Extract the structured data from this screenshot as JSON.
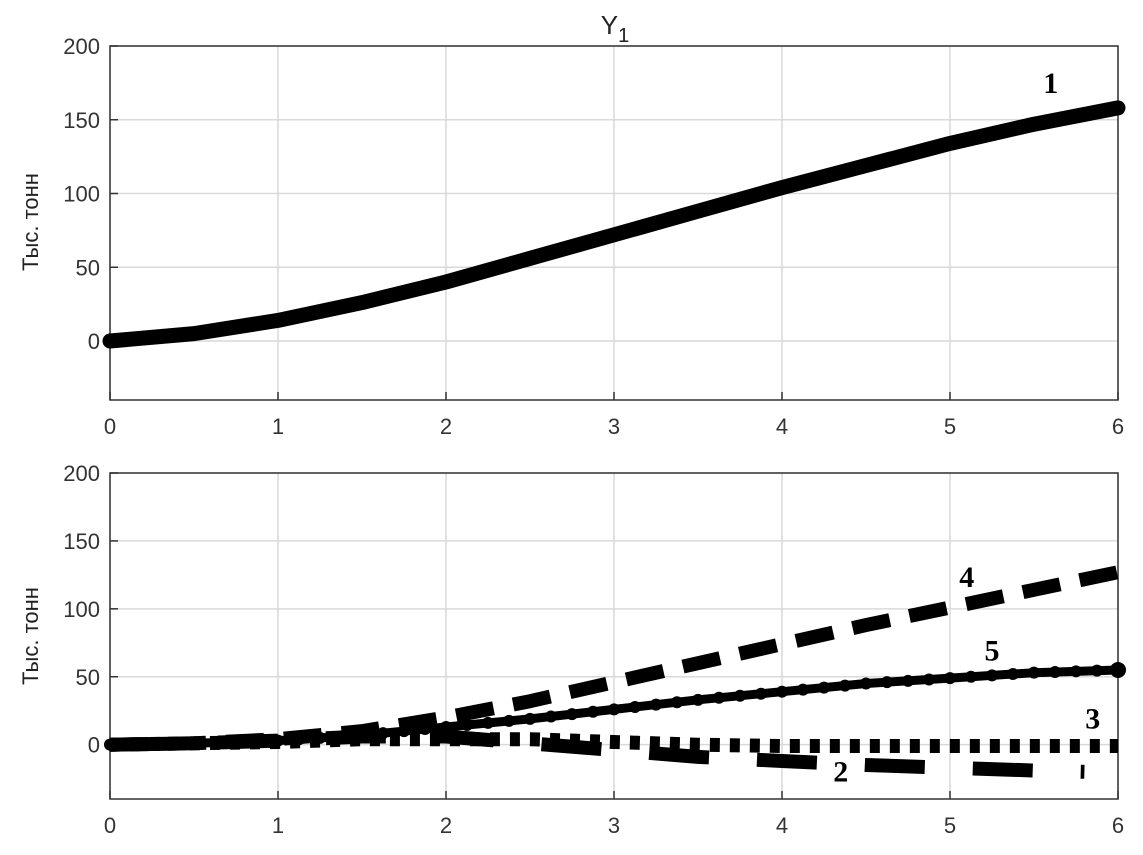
{
  "chart_data": [
    {
      "type": "line",
      "title": "Y",
      "title_subscript": "1",
      "ylabel": "Тыс. тонн",
      "xlabel": "",
      "xlim": [
        0,
        6
      ],
      "ylim": [
        -40,
        200
      ],
      "xticks": [
        0,
        1,
        2,
        3,
        4,
        5,
        6
      ],
      "yticks": [
        0,
        50,
        100,
        150,
        200
      ],
      "grid": true,
      "series": [
        {
          "label": "1",
          "style": "solid",
          "x": [
            0,
            0.5,
            1,
            1.5,
            2,
            2.5,
            3,
            3.5,
            4,
            4.5,
            5,
            5.5,
            6
          ],
          "y": [
            0,
            5,
            14,
            26,
            40,
            56,
            72,
            88,
            104,
            119,
            134,
            147,
            158
          ]
        }
      ]
    },
    {
      "type": "line",
      "ylabel": "Тыс. тонн",
      "xlabel": "",
      "xlim": [
        0,
        6
      ],
      "ylim": [
        -40,
        200
      ],
      "xticks": [
        0,
        1,
        2,
        3,
        4,
        5,
        6
      ],
      "yticks": [
        0,
        50,
        100,
        150,
        200
      ],
      "grid": true,
      "series": [
        {
          "label": "4",
          "style": "dashed",
          "x": [
            0,
            0.5,
            1,
            1.5,
            2,
            2.5,
            3,
            3.5,
            4,
            4.5,
            5,
            5.5,
            6
          ],
          "y": [
            0,
            1,
            4,
            10,
            20,
            32,
            46,
            60,
            74,
            88,
            101,
            114,
            127
          ]
        },
        {
          "label": "5",
          "style": "dotted-solid",
          "x": [
            0,
            0.5,
            1,
            1.5,
            2,
            2.5,
            3,
            3.5,
            4,
            4.5,
            5,
            5.5,
            6
          ],
          "y": [
            0,
            1,
            3,
            7,
            13,
            19,
            26,
            33,
            39,
            45,
            49,
            53,
            55
          ]
        },
        {
          "label": "3",
          "style": "dotted",
          "x": [
            0,
            0.5,
            1,
            1.5,
            2,
            2.5,
            3,
            3.5,
            4,
            4.5,
            5,
            5.5,
            6
          ],
          "y": [
            0,
            1,
            2,
            4,
            4,
            4,
            2,
            0,
            -1,
            -1,
            -1,
            -1,
            -1
          ]
        },
        {
          "label": "2",
          "style": "long-dash",
          "x": [
            0,
            0.5,
            1,
            1.5,
            2,
            2.5,
            3,
            3.5,
            4,
            4.5,
            5,
            5.5,
            5.8
          ],
          "y": [
            0,
            1,
            3,
            6,
            6,
            1,
            -4,
            -9,
            -12,
            -15,
            -17,
            -19,
            -20
          ]
        }
      ]
    }
  ],
  "curve_label_positions": [
    {
      "chart": 0,
      "text": "1",
      "x": 5.6,
      "y": 168
    },
    {
      "chart": 1,
      "text": "4",
      "x": 5.1,
      "y": 116
    },
    {
      "chart": 1,
      "text": "5",
      "x": 5.25,
      "y": 62
    },
    {
      "chart": 1,
      "text": "3",
      "x": 5.85,
      "y": 12
    },
    {
      "chart": 1,
      "text": "2",
      "x": 4.35,
      "y": -27
    }
  ]
}
